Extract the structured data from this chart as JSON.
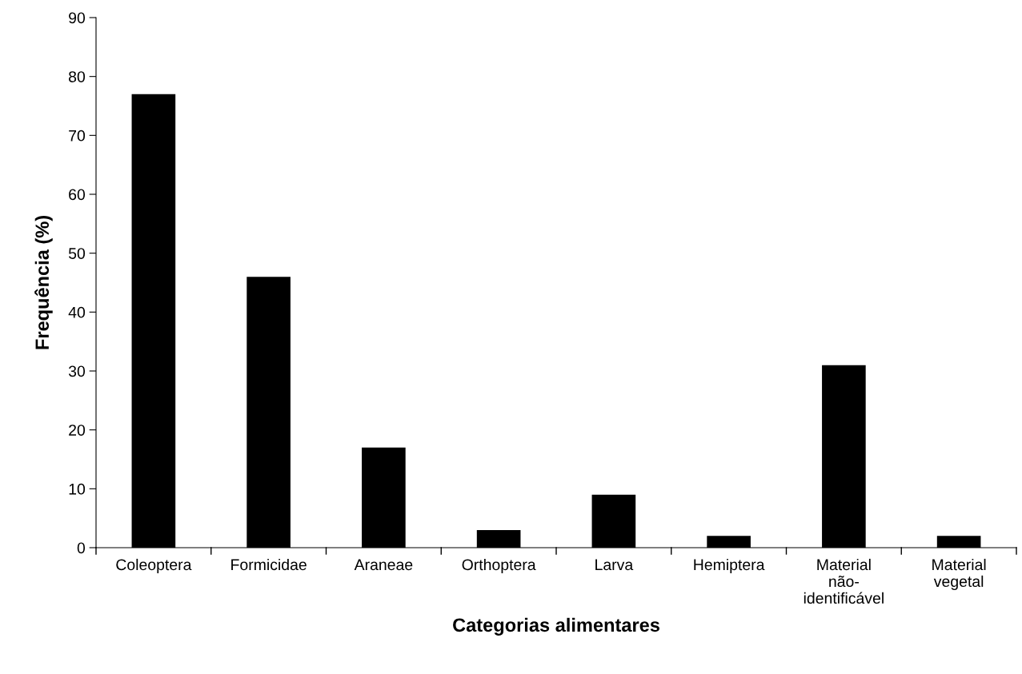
{
  "chart_data": {
    "type": "bar",
    "xlabel": "Categorias alimentares",
    "ylabel": "Frequência (%)",
    "categories": [
      "Coleoptera",
      "Formicidae",
      "Araneae",
      "Orthoptera",
      "Larva",
      "Hemiptera",
      "Material\nnão-\nidentificável",
      "Material\nvegetal"
    ],
    "values": [
      77,
      46,
      17,
      3,
      9,
      2,
      31,
      2
    ],
    "color": "#000000",
    "ylim": [
      0,
      90
    ],
    "yticks": [
      0,
      10,
      20,
      30,
      40,
      50,
      60,
      70,
      80,
      90
    ],
    "grid": false,
    "legend": false
  }
}
